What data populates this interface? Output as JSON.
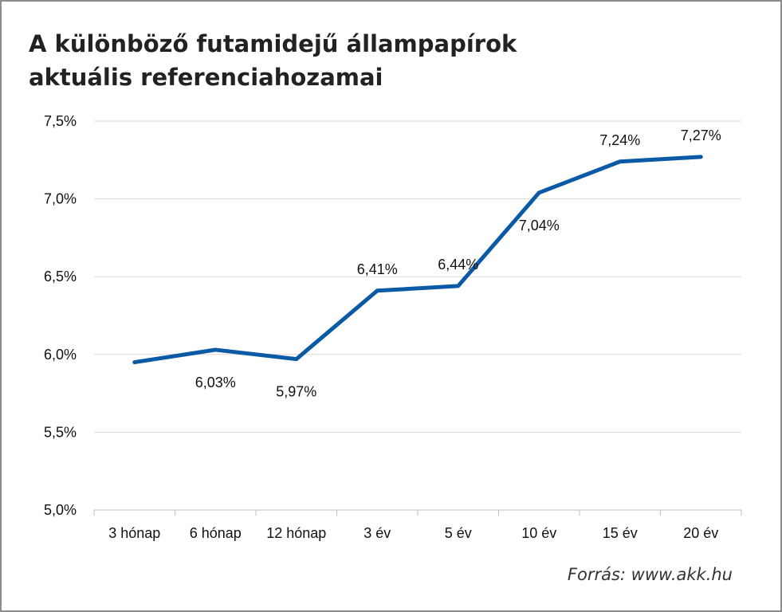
{
  "title_lines": [
    "A különböző futamidejű állampapírok",
    "aktuális referenciahozamai"
  ],
  "source": "Forrás: www.akk.hu",
  "chart_data": {
    "type": "line",
    "title": "A különböző futamidejű állampapírok aktuális referenciahozamai",
    "categories": [
      "3 hónap",
      "6 hónap",
      "12 hónap",
      "3 év",
      "5 év",
      "10 év",
      "15 év",
      "20 év"
    ],
    "values": [
      5.95,
      6.03,
      5.97,
      6.41,
      6.44,
      7.04,
      7.24,
      7.27
    ],
    "data_labels": [
      "",
      "6,03%",
      "5,97%",
      "6,41%",
      "6,44%",
      "7,04%",
      "7,24%",
      "7,27%"
    ],
    "label_positions": [
      "none",
      "below",
      "below",
      "above",
      "above",
      "below",
      "above",
      "above"
    ],
    "ylim": [
      5.0,
      7.5
    ],
    "yticks": [
      5.0,
      5.5,
      6.0,
      6.5,
      7.0,
      7.5
    ],
    "ytick_labels": [
      "5,0%",
      "5,5%",
      "6,0%",
      "6,5%",
      "7,0%",
      "7,5%"
    ],
    "grid": true,
    "line_color": "#0b5aa6",
    "grid_color": "#d9d9d9"
  }
}
